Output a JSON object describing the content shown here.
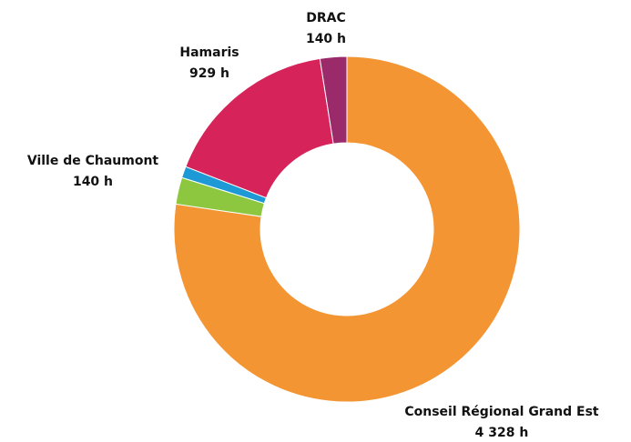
{
  "chart_data": {
    "type": "donut",
    "categories": [
      "Conseil Régional Grand Est",
      "Ville de Chaumont",
      null,
      "Hamaris",
      "DRAC"
    ],
    "values": [
      4328,
      140,
      60,
      929,
      140
    ],
    "value_labels": [
      "4 328 h",
      "140 h",
      null,
      "929 h",
      "140 h"
    ],
    "colors": [
      "#f39532",
      "#8dc63f",
      "#1d9ad6",
      "#d6235a",
      "#9b2a6b"
    ]
  }
}
